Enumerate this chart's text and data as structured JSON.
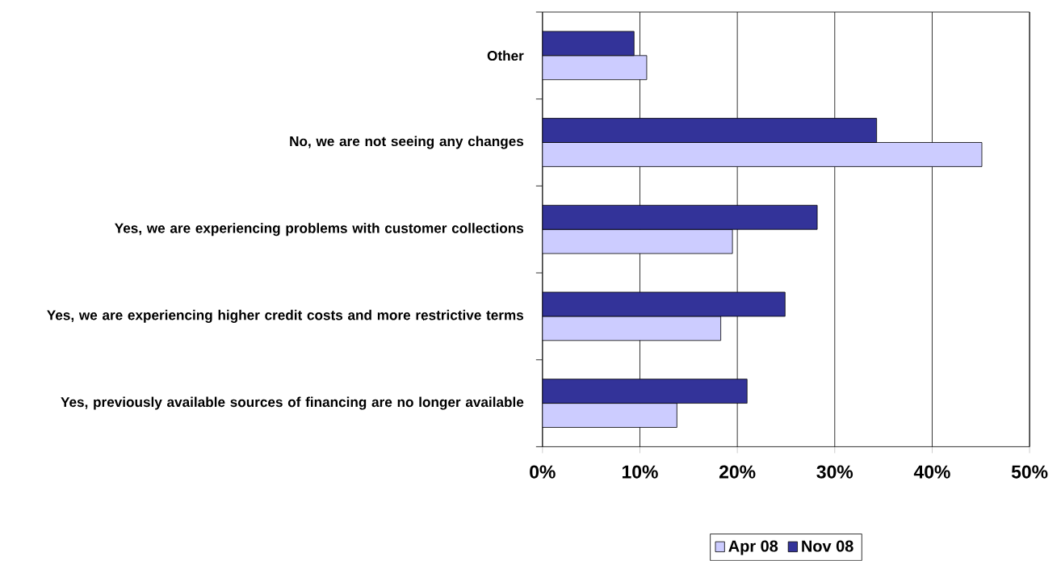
{
  "chart_data": {
    "type": "bar",
    "orientation": "horizontal",
    "categories": [
      "Other",
      "No, we are not seeing any changes",
      "Yes, we are experiencing problems with customer collections",
      "Yes, we are experiencing higher credit costs and more restrictive terms",
      "Yes, previously available sources of financing are no longer available"
    ],
    "series": [
      {
        "name": "Apr 08",
        "color": "#ccccff",
        "values": [
          10.7,
          45.1,
          19.5,
          18.3,
          13.8
        ]
      },
      {
        "name": "Nov 08",
        "color": "#333399",
        "values": [
          9.4,
          34.3,
          28.2,
          24.9,
          21.0
        ]
      }
    ],
    "xlim": [
      0,
      50
    ],
    "xticks": [
      {
        "value": 0,
        "label": "0%"
      },
      {
        "value": 10,
        "label": "10%"
      },
      {
        "value": 20,
        "label": "20%"
      },
      {
        "value": 30,
        "label": "30%"
      },
      {
        "value": 40,
        "label": "40%"
      },
      {
        "value": 50,
        "label": "50%"
      }
    ],
    "grid": "x",
    "legend": "bottom"
  }
}
